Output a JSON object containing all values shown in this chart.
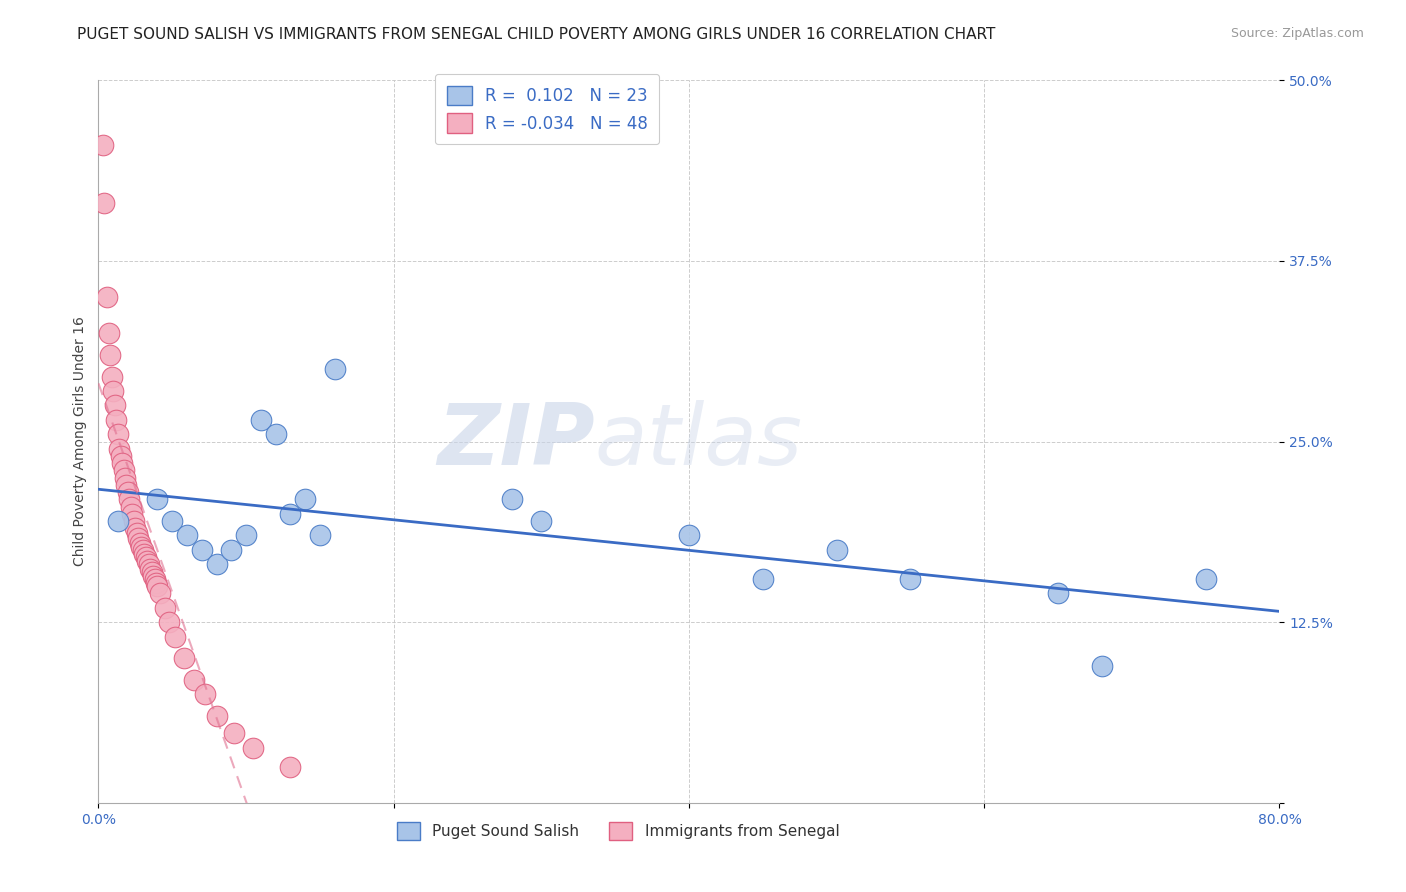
{
  "title": "PUGET SOUND SALISH VS IMMIGRANTS FROM SENEGAL CHILD POVERTY AMONG GIRLS UNDER 16 CORRELATION CHART",
  "source": "Source: ZipAtlas.com",
  "ylabel": "Child Poverty Among Girls Under 16",
  "xlim": [
    0,
    0.8
  ],
  "ylim": [
    0,
    0.5
  ],
  "yticks": [
    0.0,
    0.125,
    0.25,
    0.375,
    0.5
  ],
  "ytick_labels": [
    "",
    "12.5%",
    "25.0%",
    "37.5%",
    "50.0%"
  ],
  "xticks": [
    0.0,
    0.2,
    0.4,
    0.6,
    0.8
  ],
  "xtick_labels": [
    "0.0%",
    "",
    "",
    "",
    "80.0%"
  ],
  "blue_R": 0.102,
  "blue_N": 23,
  "pink_R": -0.034,
  "pink_N": 48,
  "blue_color": "#a8c4e8",
  "pink_color": "#f4afc0",
  "blue_edge_color": "#4a7cc7",
  "pink_edge_color": "#e06080",
  "blue_line_color": "#3a6bc4",
  "pink_line_color": "#e07090",
  "watermark_zip": "ZIP",
  "watermark_atlas": "atlas",
  "blue_scatter_x": [
    0.013,
    0.04,
    0.05,
    0.06,
    0.07,
    0.08,
    0.09,
    0.1,
    0.11,
    0.12,
    0.13,
    0.14,
    0.15,
    0.16,
    0.28,
    0.3,
    0.4,
    0.45,
    0.5,
    0.55,
    0.65,
    0.68,
    0.75
  ],
  "blue_scatter_y": [
    0.195,
    0.21,
    0.195,
    0.185,
    0.175,
    0.165,
    0.175,
    0.185,
    0.265,
    0.255,
    0.2,
    0.21,
    0.185,
    0.3,
    0.21,
    0.195,
    0.185,
    0.155,
    0.175,
    0.155,
    0.145,
    0.095,
    0.155
  ],
  "pink_scatter_x": [
    0.003,
    0.004,
    0.006,
    0.007,
    0.008,
    0.009,
    0.01,
    0.011,
    0.012,
    0.013,
    0.014,
    0.015,
    0.016,
    0.017,
    0.018,
    0.019,
    0.02,
    0.021,
    0.022,
    0.023,
    0.024,
    0.025,
    0.026,
    0.027,
    0.028,
    0.029,
    0.03,
    0.031,
    0.032,
    0.033,
    0.034,
    0.035,
    0.036,
    0.037,
    0.038,
    0.039,
    0.04,
    0.042,
    0.045,
    0.048,
    0.052,
    0.058,
    0.065,
    0.072,
    0.08,
    0.092,
    0.105,
    0.13
  ],
  "pink_scatter_y": [
    0.455,
    0.415,
    0.35,
    0.325,
    0.31,
    0.295,
    0.285,
    0.275,
    0.265,
    0.255,
    0.245,
    0.24,
    0.235,
    0.23,
    0.225,
    0.22,
    0.215,
    0.21,
    0.205,
    0.2,
    0.195,
    0.19,
    0.187,
    0.183,
    0.18,
    0.177,
    0.175,
    0.172,
    0.17,
    0.167,
    0.165,
    0.162,
    0.16,
    0.157,
    0.155,
    0.152,
    0.15,
    0.145,
    0.135,
    0.125,
    0.115,
    0.1,
    0.085,
    0.075,
    0.06,
    0.048,
    0.038,
    0.025
  ],
  "legend_label_blue": "Puget Sound Salish",
  "legend_label_pink": "Immigrants from Senegal",
  "title_fontsize": 11,
  "source_fontsize": 9,
  "axis_label_fontsize": 10,
  "tick_fontsize": 10,
  "background_color": "#ffffff"
}
